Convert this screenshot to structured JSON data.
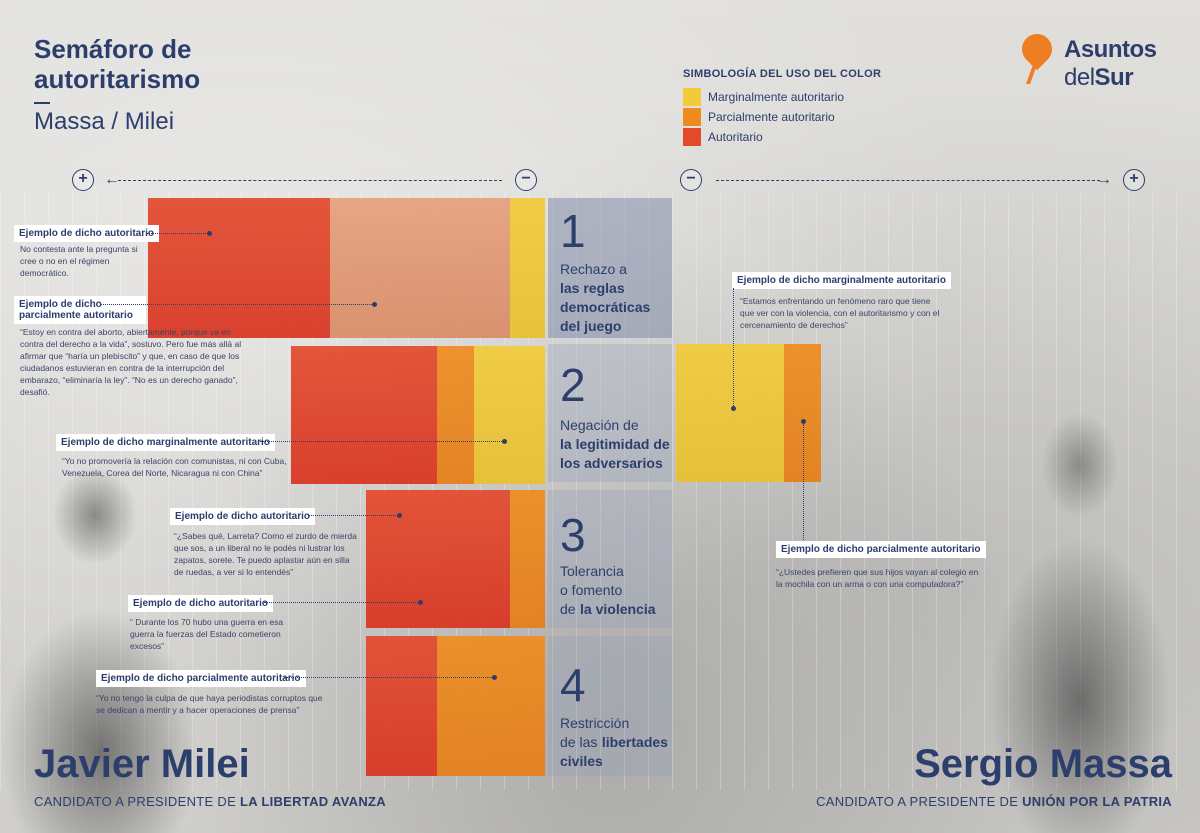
{
  "title": "Semáforo de autoritarismo",
  "subtitle": "Massa / Milei",
  "logo": {
    "line1": "Asuntos",
    "line2_a": "del",
    "line2_b": "Sur",
    "accent": "#ef7d22"
  },
  "legend": {
    "title": "SIMBOLOGÍA DEL USO DEL COLOR",
    "items": [
      {
        "label": "Marginalmente autoritario",
        "color": "#f2cb3a"
      },
      {
        "label": "Parcialmente autoritario",
        "color": "#ef8c1f"
      },
      {
        "label": "Autoritario",
        "color": "#e34a2c"
      }
    ]
  },
  "axis": {
    "plus": "+",
    "minus": "−"
  },
  "categories": [
    {
      "num": "1",
      "line1": "Rechazo a",
      "bold": "las reglas democráticas del juego"
    },
    {
      "num": "2",
      "line1": "Negación de",
      "bold": "la legitimidad de los adversarios"
    },
    {
      "num": "3",
      "line1": "Tolerancia o fomento de",
      "bold": "la violencia"
    },
    {
      "num": "4",
      "line1": "Restricción de las",
      "bold": "libertades civiles"
    }
  ],
  "cat_lines": {
    "c1": [
      "Rechazo a",
      "las reglas",
      "democráticas",
      "del juego"
    ],
    "c2": [
      "Negación de",
      "la legitimidad de",
      "los adversarios"
    ],
    "c3": [
      "Tolerancia",
      "o fomento",
      "de",
      "la violencia"
    ],
    "c4": [
      "Restricción",
      "de las",
      "libertades",
      "civiles"
    ]
  },
  "milei_examples": [
    {
      "label": "Ejemplo de dicho autoritario",
      "quote": "No contesta ante la pregunta si cree o no en el régimen democrático."
    },
    {
      "label": "Ejemplo de dicho parcialmente autoritario",
      "quote": "“Estoy en contra del aborto, abiertamente, porque va en contra del derecho a la vida”, sostuvo. Pero fue más allá al afirmar que “haría un plebiscito” y que, en caso de que los ciudadanos estuvieran en contra de la interrupción del embarazo, “eliminaría la ley”. “No es un derecho ganado”, desafió."
    },
    {
      "label": "Ejemplo de dicho marginalmente autoritario",
      "quote": "“Yo no promovería la relación con comunistas, ni con Cuba, Venezuela, Corea del Norte, Nicaragua ni con China”"
    },
    {
      "label": "Ejemplo de dicho autoritario",
      "quote": "“¿Sabes qué, Larreta? Como el zurdo de mierda que sos, a un liberal no le podés ni lustrar los zapatos, sorete. Te puedo aplastar aún en silla de ruedas, a ver si lo entendés”"
    },
    {
      "label": "Ejemplo de dicho autoritario",
      "quote": "“ Durante los 70 hubo una guerra en esa guerra la fuerzas del Estado cometieron excesos”"
    },
    {
      "label": "Ejemplo de dicho parcialmente autoritario",
      "quote": "“Yo no tengo la culpa de que haya periodistas corruptos que se dedican a mentir y a hacer operaciones de prensa”"
    }
  ],
  "massa_examples": [
    {
      "label": "Ejemplo de dicho marginalmente autoritario",
      "quote": "“Estamos enfrentando un fenómeno raro que tiene que ver con la violencia, con el autoritarismo y con el cercenamiento de derechos”"
    },
    {
      "label": "Ejemplo de dicho parcialmente autoritario",
      "quote": "“¿Ustedes prefieren que sus hijos vayan al colegio en la mochila con un arma o con una computadora?”"
    }
  ],
  "candidates": {
    "left": {
      "name": "Javier Milei",
      "role_prefix": "CANDIDATO A PRESIDENTE DE",
      "party": "LA LIBERTAD AVANZA"
    },
    "right": {
      "name": "Sergio Massa",
      "role_prefix": "CANDIDATO A PRESIDENTE DE",
      "party": "UNIÓN POR LA PATRIA"
    }
  }
}
